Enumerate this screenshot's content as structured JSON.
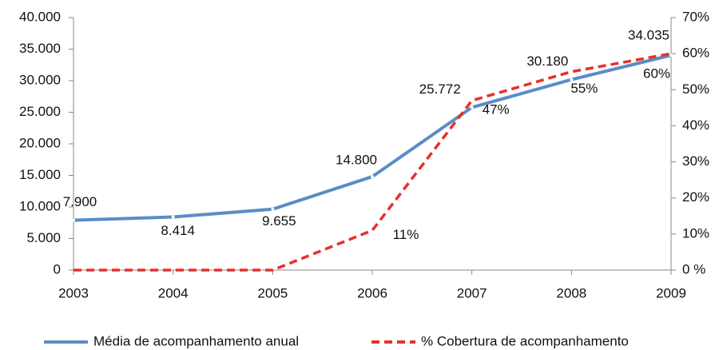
{
  "chart_data": {
    "type": "line",
    "x": [
      2003,
      2004,
      2005,
      2006,
      2007,
      2008,
      2009
    ],
    "xlim": [
      2003,
      2009
    ],
    "xticks": [
      2003,
      2004,
      2005,
      2006,
      2007,
      2008,
      2009
    ],
    "ylim": [
      0,
      40000
    ],
    "yticks": [
      0,
      {
        "value": 5000,
        "label": "5.000"
      },
      {
        "value": 10000,
        "label": "10.000"
      },
      {
        "value": 15000,
        "label": "15.000"
      },
      {
        "value": 20000,
        "label": "20.000"
      },
      {
        "value": 25000,
        "label": "25.000"
      },
      {
        "value": 30000,
        "label": "30.000"
      },
      {
        "value": 35000,
        "label": "35.000"
      },
      {
        "value": 40000,
        "label": "40.000"
      }
    ],
    "y2lim": [
      0,
      70
    ],
    "y2ticks": [
      {
        "value": 0,
        "label": "0 %"
      },
      {
        "value": 10,
        "label": "10%"
      },
      {
        "value": 20,
        "label": "20%"
      },
      {
        "value": 30,
        "label": "30%"
      },
      {
        "value": 40,
        "label": "40%"
      },
      {
        "value": 50,
        "label": "50%"
      },
      {
        "value": 60,
        "label": "60%"
      },
      {
        "value": 70,
        "label": "70%"
      }
    ],
    "grid": false,
    "legend": "bottom",
    "series": [
      {
        "name": "Média de acompanhamento anual",
        "color": "#5b8cc6",
        "dashed": false,
        "values": [
          7900,
          8414,
          9655,
          14800,
          25772,
          30180,
          34035
        ],
        "value_labels": [
          "7.900",
          "8.414",
          "9.655",
          "14.800",
          "25.772",
          "30.180",
          "34.035"
        ]
      },
      {
        "name": "% Cobertura de acompanhamento",
        "color": "#e8302a",
        "dashed": true,
        "axis": "y2",
        "values": [
          0,
          0,
          0,
          11,
          47,
          55,
          60
        ],
        "value_labels": [
          null,
          null,
          null,
          "11%",
          "47%",
          "55%",
          "60%"
        ]
      }
    ]
  }
}
